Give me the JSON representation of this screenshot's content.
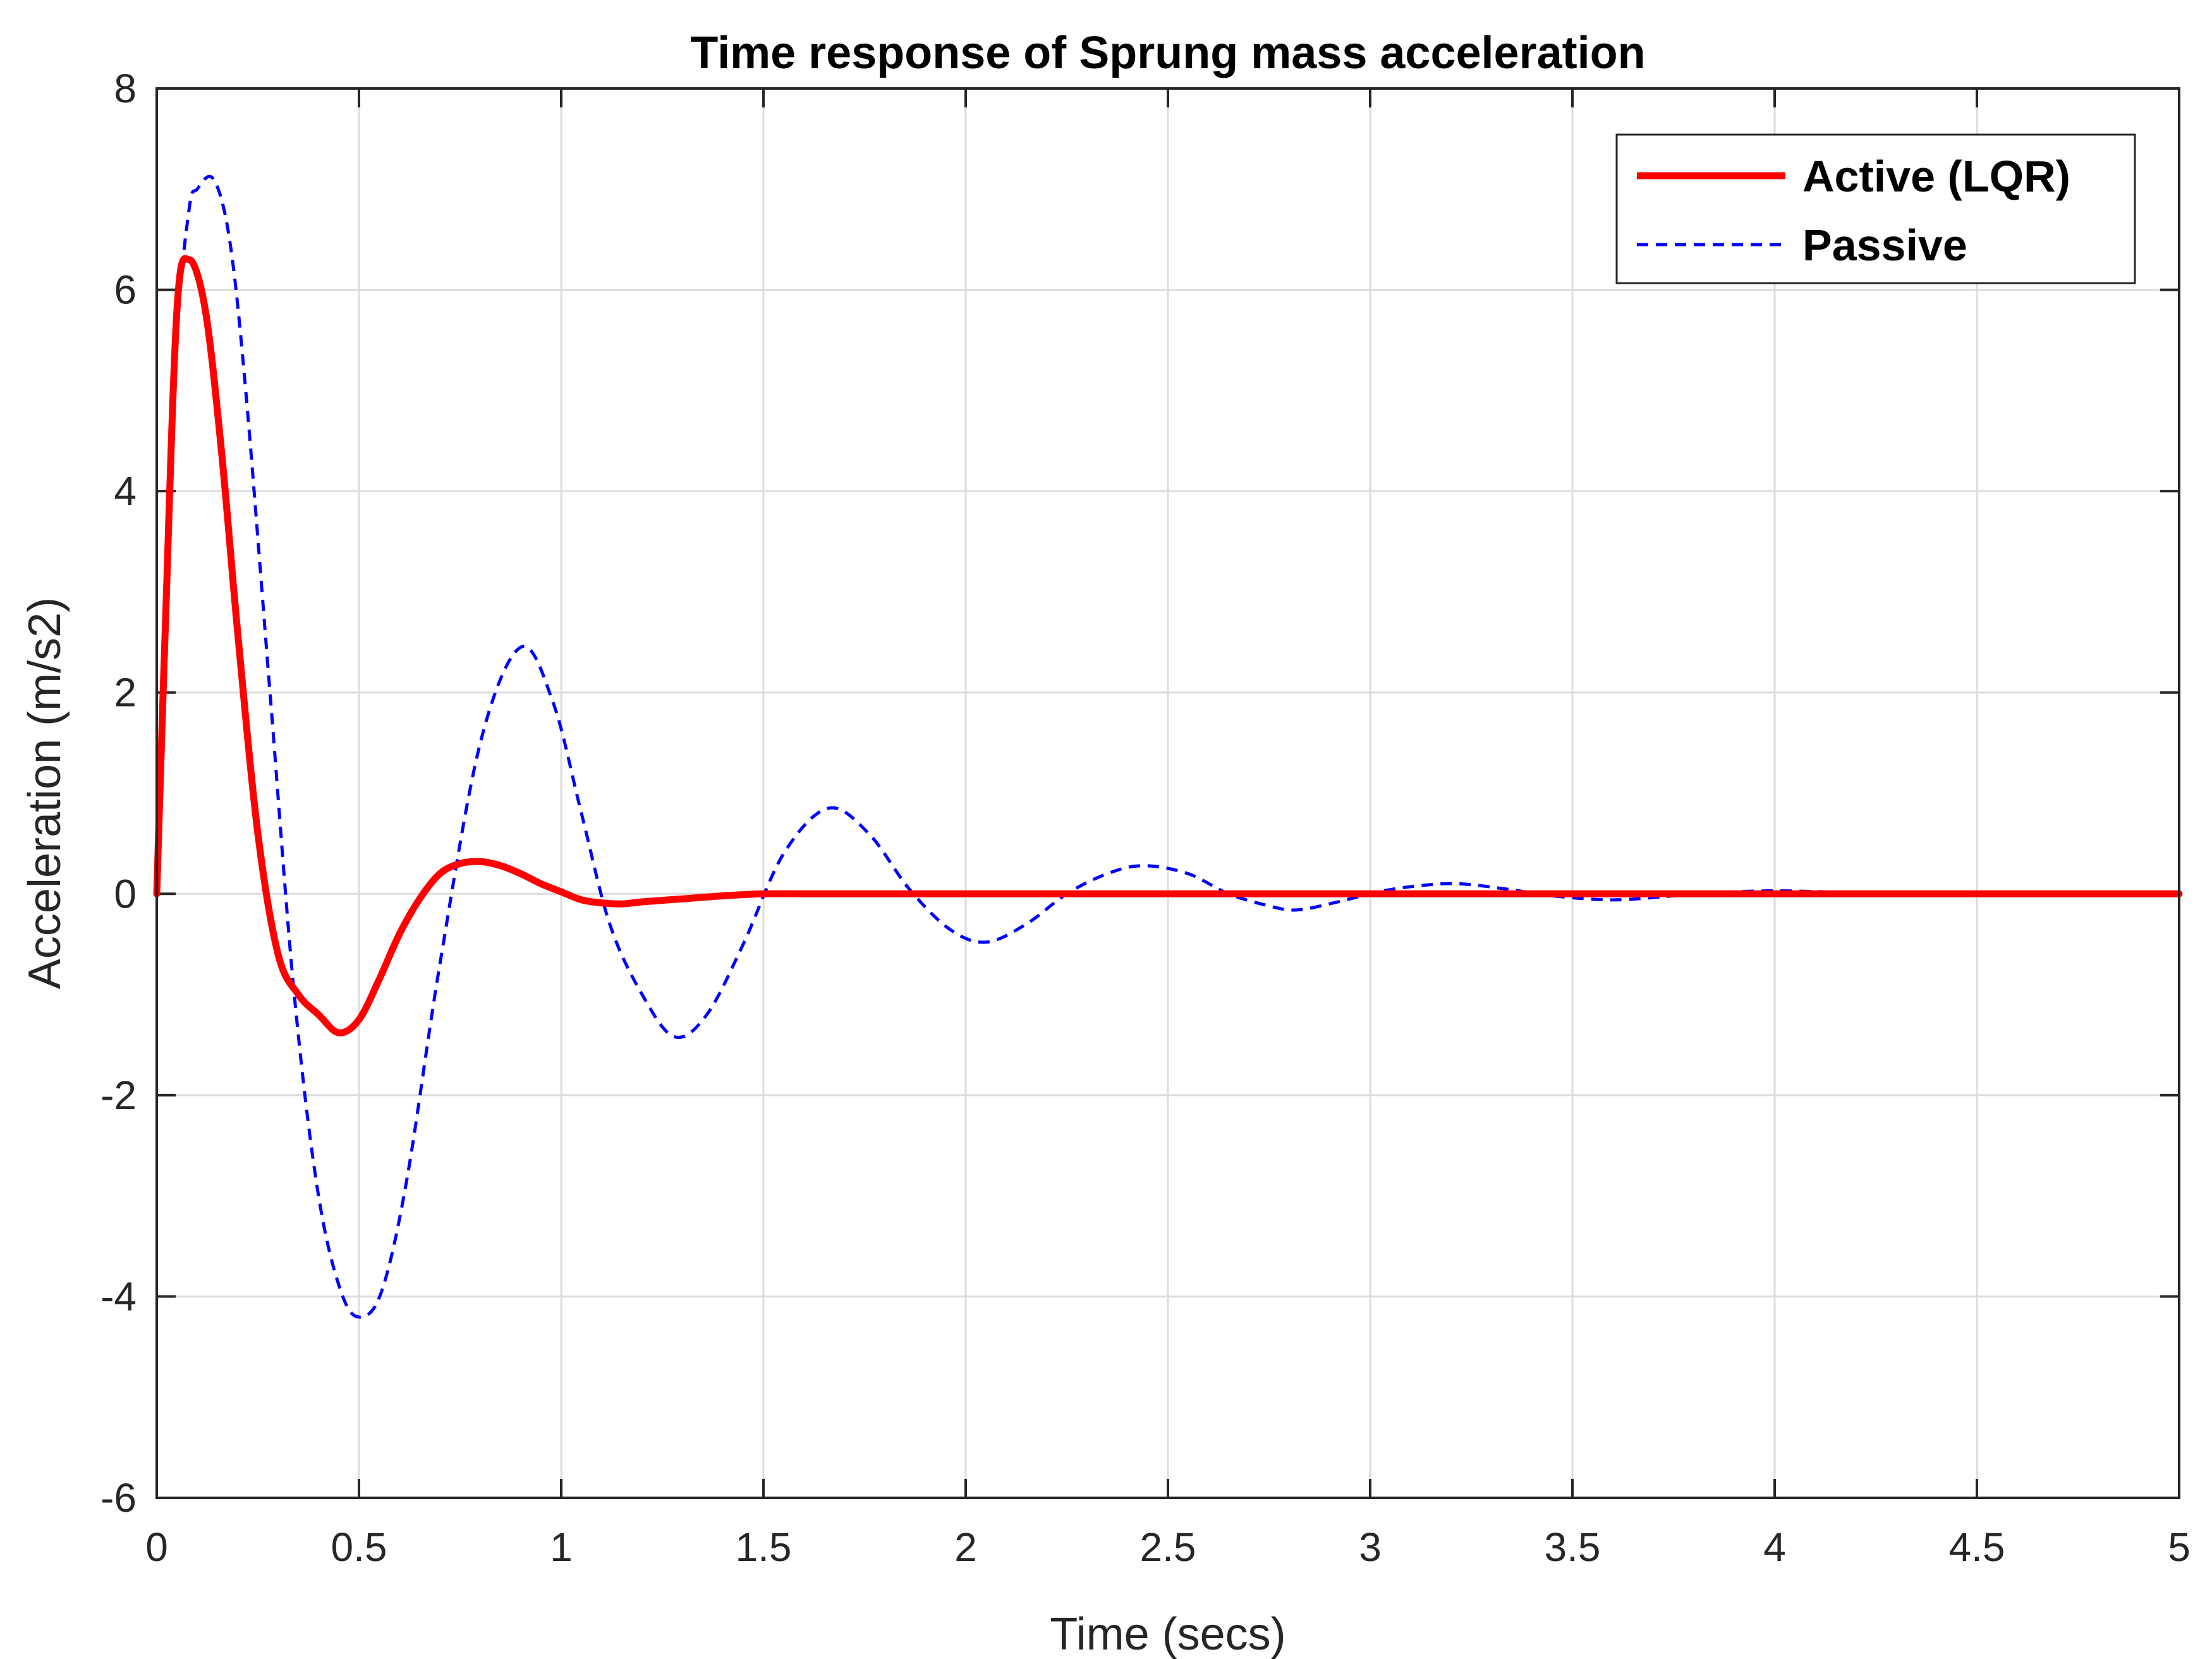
{
  "chart_data": {
    "type": "line",
    "title": "Time response of Sprung mass acceleration",
    "xlabel": "Time (secs)",
    "ylabel": "Acceleration (m/s2)",
    "xlim": [
      0,
      5
    ],
    "ylim": [
      -6,
      8
    ],
    "xticks": [
      "0",
      "0.5",
      "1",
      "1.5",
      "2",
      "2.5",
      "3",
      "3.5",
      "4",
      "4.5",
      "5"
    ],
    "yticks": [
      "-6",
      "-4",
      "-2",
      "0",
      "2",
      "4",
      "6",
      "8"
    ],
    "grid": true,
    "legend_position": "top-right",
    "series": [
      {
        "name": "Active (LQR)",
        "color": "#ff0000",
        "style": "solid",
        "x": [
          0,
          0.02,
          0.05,
          0.08,
          0.12,
          0.16,
          0.2,
          0.25,
          0.3,
          0.35,
          0.4,
          0.45,
          0.5,
          0.55,
          0.6,
          0.65,
          0.7,
          0.75,
          0.8,
          0.85,
          0.9,
          0.95,
          1.0,
          1.05,
          1.1,
          1.15,
          1.2,
          1.3,
          1.4,
          1.5,
          1.6,
          1.8,
          2.0,
          2.5,
          3.0,
          3.5,
          4.0,
          4.5,
          5.0
        ],
        "values": [
          0,
          2.5,
          5.8,
          6.3,
          5.8,
          4.4,
          2.6,
          0.6,
          -0.6,
          -1.0,
          -1.2,
          -1.38,
          -1.25,
          -0.85,
          -0.4,
          -0.05,
          0.2,
          0.3,
          0.32,
          0.28,
          0.2,
          0.1,
          0.02,
          -0.06,
          -0.09,
          -0.1,
          -0.08,
          -0.05,
          -0.02,
          0.0,
          0.0,
          0.0,
          0.0,
          0.0,
          0.0,
          0.0,
          0.0,
          0.0,
          0.0
        ]
      },
      {
        "name": "Passive",
        "color": "#0000ff",
        "style": "dashed",
        "x": [
          0,
          0.02,
          0.05,
          0.08,
          0.1,
          0.14,
          0.18,
          0.22,
          0.28,
          0.34,
          0.4,
          0.46,
          0.51,
          0.56,
          0.62,
          0.7,
          0.8,
          0.9,
          0.98,
          1.05,
          1.12,
          1.2,
          1.28,
          1.36,
          1.45,
          1.55,
          1.66,
          1.76,
          1.86,
          1.96,
          2.05,
          2.15,
          2.25,
          2.35,
          2.44,
          2.55,
          2.65,
          2.75,
          2.82,
          2.92,
          3.02,
          3.12,
          3.22,
          3.35,
          3.45,
          3.6,
          3.75,
          3.85,
          4.0,
          4.2,
          4.4,
          4.6,
          4.8,
          5.0
        ],
        "values": [
          0,
          2.5,
          5.5,
          6.8,
          7.0,
          7.1,
          6.5,
          5.0,
          2.0,
          -1.0,
          -3.0,
          -4.0,
          -4.2,
          -3.9,
          -2.8,
          -0.7,
          1.5,
          2.45,
          1.9,
          0.8,
          -0.3,
          -1.0,
          -1.42,
          -1.2,
          -0.5,
          0.4,
          0.85,
          0.6,
          0.05,
          -0.35,
          -0.48,
          -0.3,
          0.0,
          0.2,
          0.28,
          0.2,
          0.0,
          -0.12,
          -0.16,
          -0.08,
          0.02,
          0.08,
          0.1,
          0.04,
          -0.02,
          -0.06,
          -0.02,
          0.01,
          0.03,
          0.01,
          -0.01,
          0.0,
          0.0,
          0.0
        ]
      }
    ]
  }
}
